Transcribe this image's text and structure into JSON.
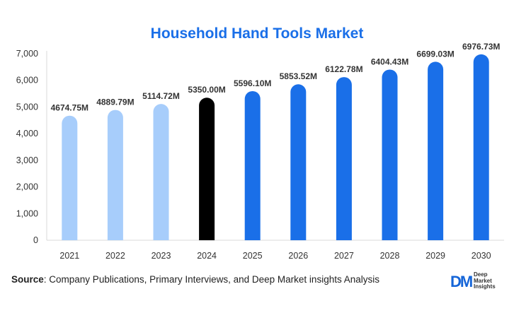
{
  "chart_data": {
    "type": "bar",
    "title": "Household Hand Tools Market",
    "categories": [
      "2021",
      "2022",
      "2023",
      "2024",
      "2025",
      "2026",
      "2027",
      "2028",
      "2029",
      "2030"
    ],
    "values": [
      4674.75,
      4889.79,
      5114.72,
      5350.0,
      5596.1,
      5853.52,
      6122.78,
      6404.43,
      6699.03,
      6976.73
    ],
    "data_labels": [
      "4674.75M",
      "4889.79M",
      "5114.72M",
      "5350.00M",
      "5596.10M",
      "5853.52M",
      "6122.78M",
      "6404.43M",
      "6699.03M",
      "6976.73M"
    ],
    "yticks": [
      0,
      1000,
      2000,
      3000,
      4000,
      5000,
      6000,
      7000
    ],
    "ytick_labels": [
      "0",
      "1,000",
      "2,000",
      "3,000",
      "4,000",
      "5,000",
      "6,000",
      "7,000"
    ],
    "ylim": [
      0,
      7000
    ],
    "xlabel": "",
    "ylabel": "",
    "grid": false,
    "bar_colors": [
      "#a7cdfb",
      "#a7cdfb",
      "#a7cdfb",
      "#000000",
      "#1a6fe8",
      "#1a6fe8",
      "#1a6fe8",
      "#1a6fe8",
      "#1a6fe8",
      "#1a6fe8"
    ]
  },
  "source": {
    "label": "Source",
    "text": ": Company Publications, Primary Interviews, and Deep Market insights Analysis"
  },
  "logo": {
    "mark": "DM",
    "line1": "Deep",
    "line2": "Market",
    "line3": "Insights"
  }
}
